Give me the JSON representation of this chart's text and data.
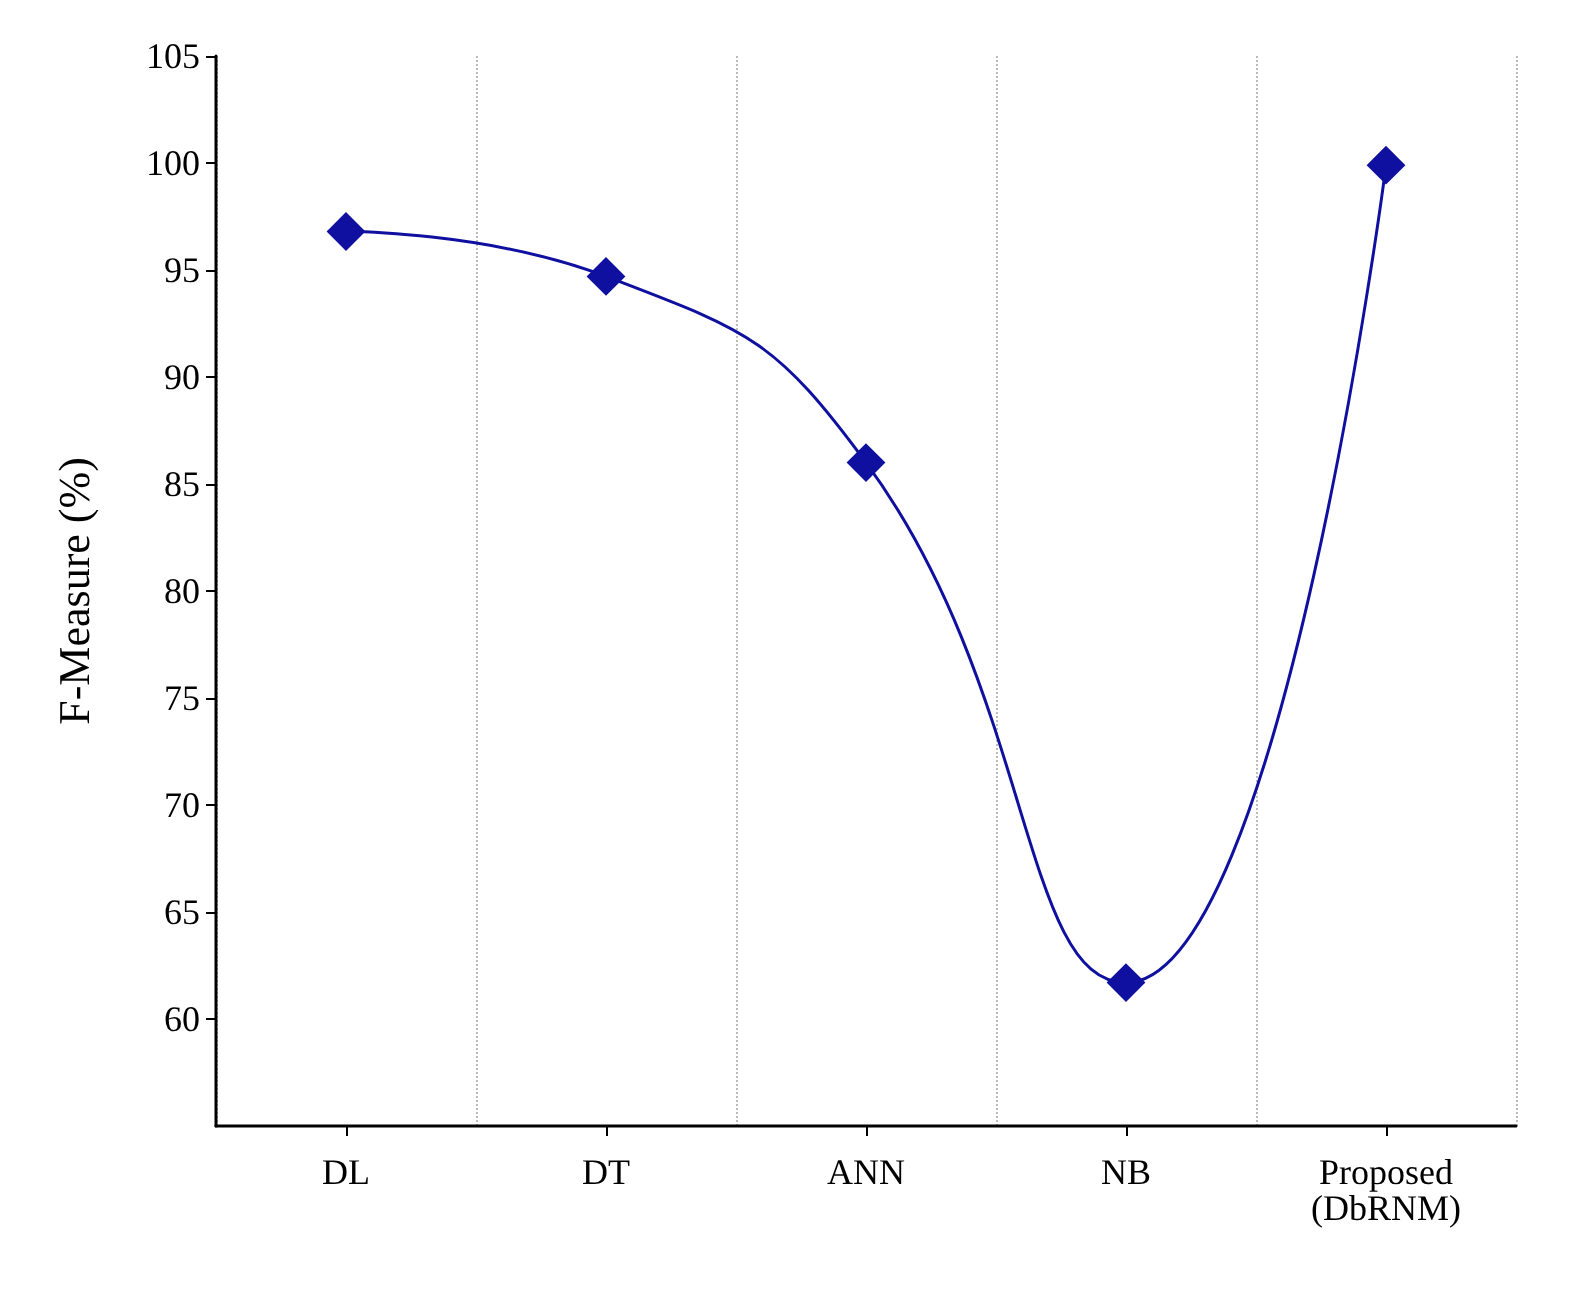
{
  "chart_data": {
    "type": "line",
    "ylabel": "F-Measure (%)",
    "categories": [
      "DL",
      "DT",
      "ANN",
      "NB",
      "Proposed\n(DbRNM)"
    ],
    "series": [
      {
        "color": "#1010a0",
        "values": [
          96.8,
          94.7,
          86,
          61.7,
          99.9
        ]
      }
    ],
    "ylim": [
      55,
      105
    ],
    "yticks": [
      60,
      65,
      70,
      75,
      80,
      85,
      90,
      95,
      100,
      105
    ],
    "grid": "x",
    "marker": "diamond",
    "line_style": "solid"
  }
}
